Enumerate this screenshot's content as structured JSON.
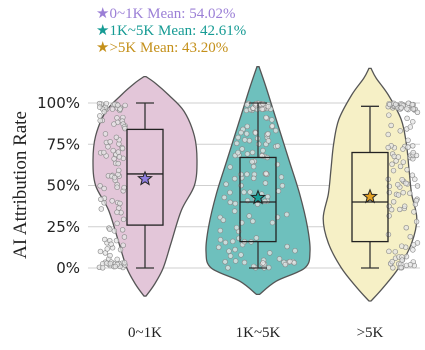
{
  "chart_data": {
    "type": "violin",
    "ylabel": "AI Attribution Rate",
    "y_ticks": [
      "0%",
      "25%",
      "50%",
      "75%",
      "100%"
    ],
    "y_tick_values": [
      0,
      25,
      50,
      75,
      100
    ],
    "ylim": [
      -25,
      110
    ],
    "grid": "horizontal",
    "legend_placement": "top-left",
    "categories": [
      "0~1K",
      "1K~5K",
      ">5K"
    ],
    "series": [
      {
        "category": "0~1K",
        "legend": "0~1K Mean:  54.02%",
        "mean": 54.02,
        "q1": 26,
        "median": 57,
        "q3": 84,
        "whisker_low": 0,
        "whisker_high": 100,
        "color": "#e3c6d9",
        "mean_color": "#8f7ee0",
        "legend_color": "#9b7fd6",
        "violin_width": [
          [
            -17,
            0.02
          ],
          [
            -10,
            0.18
          ],
          [
            0,
            0.35
          ],
          [
            15,
            0.5
          ],
          [
            35,
            0.7
          ],
          [
            50,
            0.95
          ],
          [
            65,
            1.0
          ],
          [
            80,
            0.95
          ],
          [
            95,
            0.75
          ],
          [
            105,
            0.45
          ],
          [
            112,
            0.2
          ],
          [
            116,
            0.02
          ]
        ]
      },
      {
        "category": "1K~5K",
        "legend": "1K~5K Mean:  42.61%",
        "mean": 42.61,
        "q1": 16,
        "median": 40,
        "q3": 67,
        "whisker_low": 0,
        "whisker_high": 100,
        "color": "#6ec0bd",
        "mean_color": "#1a9e96",
        "legend_color": "#169b94",
        "violin_width": [
          [
            -16,
            0.03
          ],
          [
            -8,
            0.35
          ],
          [
            0,
            0.9
          ],
          [
            10,
            1.0
          ],
          [
            25,
            0.95
          ],
          [
            45,
            0.8
          ],
          [
            65,
            0.6
          ],
          [
            80,
            0.45
          ],
          [
            95,
            0.3
          ],
          [
            110,
            0.15
          ],
          [
            122,
            0.02
          ]
        ]
      },
      {
        "category": ">5K",
        "legend": ">5K Mean:  43.20%",
        "mean": 43.2,
        "q1": 16,
        "median": 40,
        "q3": 70,
        "whisker_low": 0,
        "whisker_high": 98,
        "color": "#f6f0c6",
        "mean_color": "#e3a020",
        "legend_color": "#c4901a",
        "violin_width": [
          [
            -20,
            0.02
          ],
          [
            -12,
            0.25
          ],
          [
            0,
            0.55
          ],
          [
            15,
            0.8
          ],
          [
            30,
            0.9
          ],
          [
            45,
            0.8
          ],
          [
            60,
            0.75
          ],
          [
            75,
            0.7
          ],
          [
            90,
            0.6
          ],
          [
            105,
            0.35
          ],
          [
            115,
            0.12
          ],
          [
            121,
            0.02
          ]
        ]
      }
    ]
  }
}
